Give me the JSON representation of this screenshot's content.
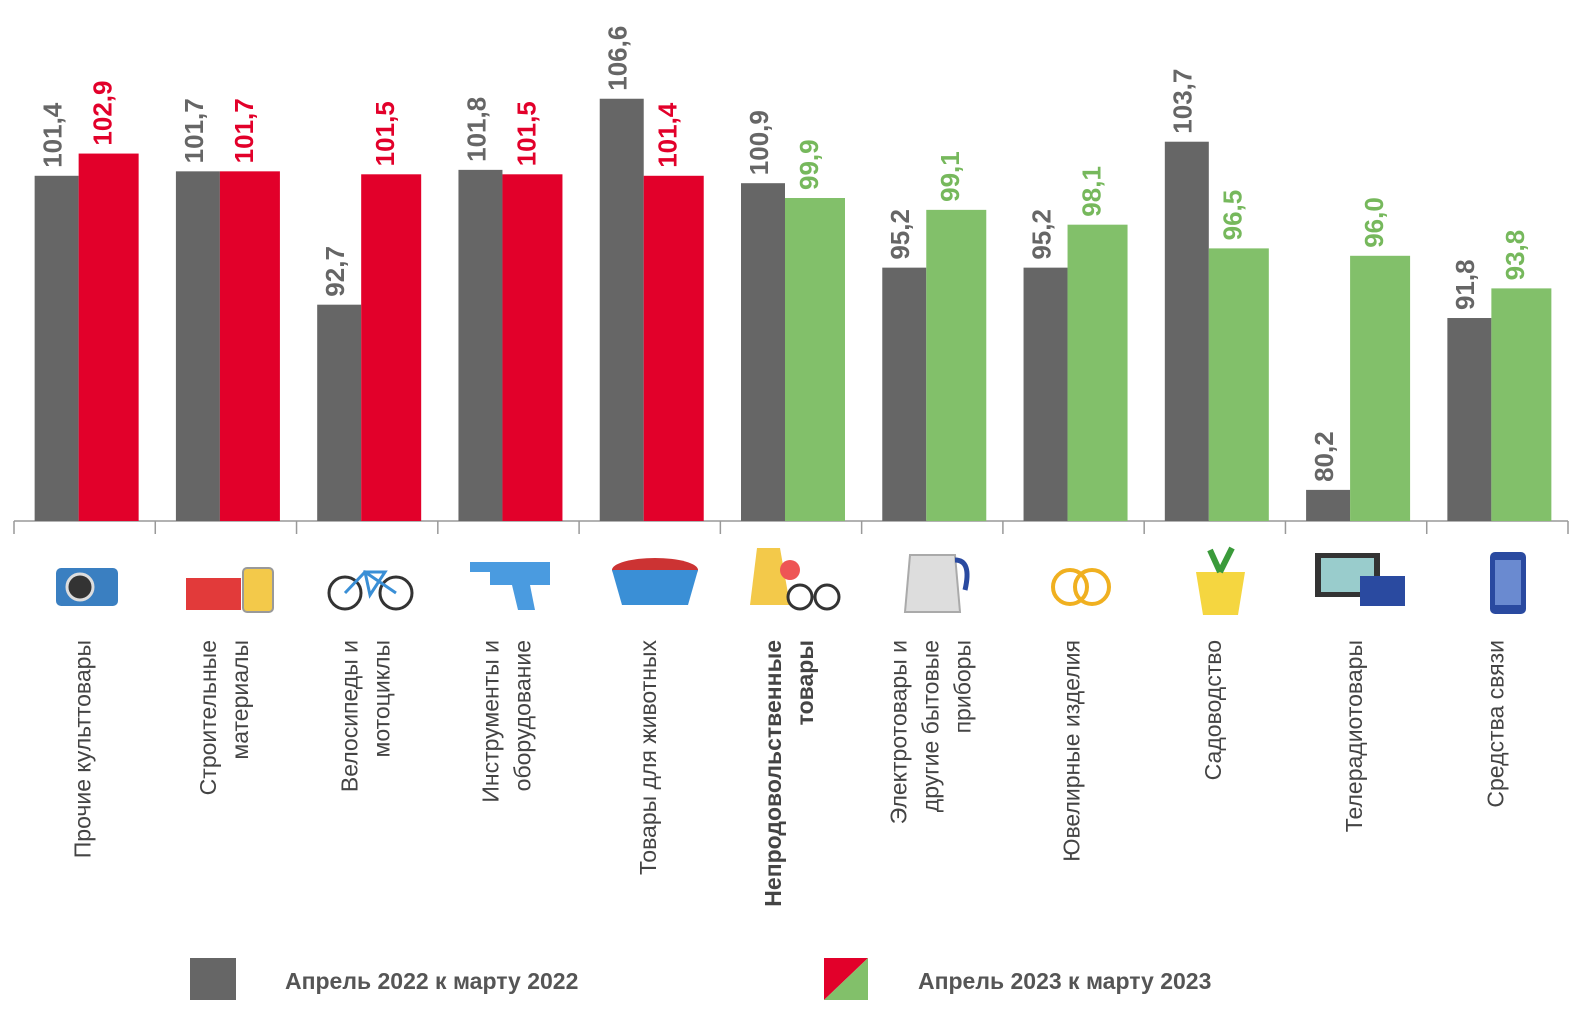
{
  "chart_data": {
    "type": "bar",
    "categories": [
      [
        "Прочие культтовары"
      ],
      [
        "Строительные",
        "материалы"
      ],
      [
        "Велосипеды и",
        "мотоциклы"
      ],
      [
        "Инструменты и",
        "оборудование"
      ],
      [
        "Товары для животных"
      ],
      [
        "Непродовольственные",
        "товары"
      ],
      [
        "Электротовары и",
        "другие бытовые",
        "приборы"
      ],
      [
        "Ювелирные изделия"
      ],
      [
        "Садоводство"
      ],
      [
        "Телерадиотовары"
      ],
      [
        "Средства связи"
      ]
    ],
    "highlight_category": 5,
    "series": [
      {
        "name": "Апрель 2022 к марту 2022",
        "color": "#666666",
        "values": [
          101.4,
          101.7,
          92.7,
          101.8,
          106.6,
          100.9,
          95.2,
          95.2,
          103.7,
          80.2,
          91.8
        ],
        "value_labels": [
          "101,4",
          "101,7",
          "92,7",
          "101,8",
          "106,6",
          "100,9",
          "95,2",
          "95,2",
          "103,7",
          "80,2",
          "91,8"
        ]
      },
      {
        "name": "Апрель 2023 к марту 2023",
        "colors": [
          "#e2002a",
          "#e2002a",
          "#e2002a",
          "#e2002a",
          "#e2002a",
          "#82c06a",
          "#82c06a",
          "#82c06a",
          "#82c06a",
          "#82c06a",
          "#82c06a"
        ],
        "values": [
          102.9,
          101.7,
          101.5,
          101.5,
          101.4,
          99.9,
          99.1,
          98.1,
          96.5,
          96.0,
          93.8
        ],
        "value_labels": [
          "102,9",
          "101,7",
          "101,5",
          "101,5",
          "101,4",
          "99,9",
          "99,1",
          "98,1",
          "96,5",
          "96,0",
          "93,8"
        ]
      }
    ],
    "ylim": [
      78.1,
      108
    ]
  }
}
